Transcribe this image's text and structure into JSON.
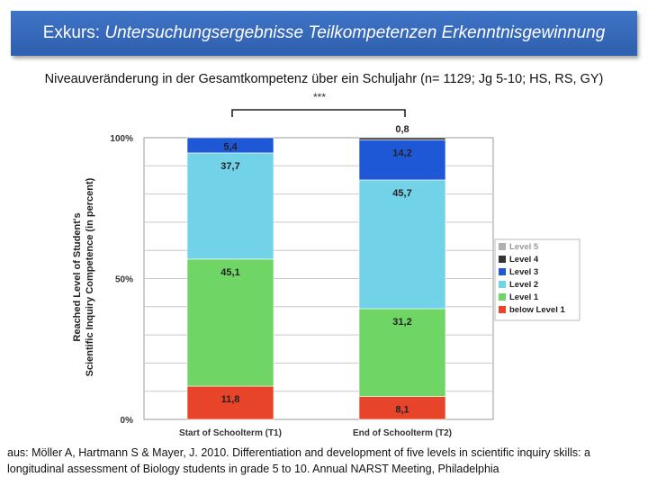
{
  "header": {
    "title_prefix": "Exkurs: ",
    "title_main": "Untersuchungsergebnisse Teilkompetenzen Erkenntnisgewinnung"
  },
  "subtitle": "Niveauveränderung in der Gesamtkompetenz über ein Schuljahr (n= 1129; Jg 5-10; HS, RS, GY)",
  "significance": "***",
  "chart_data": {
    "type": "bar",
    "stacked": true,
    "categories": [
      "Start of Schoolterm (T1)",
      "End of Schoolterm (T2)"
    ],
    "ylabel": "Reached Level of Student's Scientific Inquiry Competence (in percent)",
    "ylabel_lines": [
      "Reached Level of Student's",
      "Scientific Inquiry Competence (in percent)"
    ],
    "xlabel": "",
    "ylim": [
      0,
      100
    ],
    "yticks": [
      {
        "value": 0,
        "label": "0%"
      },
      {
        "value": 50,
        "label": "50%"
      },
      {
        "value": 100,
        "label": "100%"
      }
    ],
    "series": [
      {
        "name": "below Level 1",
        "color": "#e8442a",
        "values": [
          11.8,
          8.1
        ],
        "labels": [
          "11,8",
          "8,1"
        ]
      },
      {
        "name": "Level 1",
        "color": "#6fd665",
        "values": [
          45.1,
          31.2
        ],
        "labels": [
          "45,1",
          "31,2"
        ]
      },
      {
        "name": "Level 2",
        "color": "#72d2e8",
        "values": [
          37.7,
          45.7
        ],
        "labels": [
          "37,7",
          "45,7"
        ]
      },
      {
        "name": "Level 3",
        "color": "#1f58d6",
        "values": [
          5.4,
          14.2
        ],
        "labels": [
          "5,4",
          "14,2"
        ]
      },
      {
        "name": "Level 4",
        "color": "#333333",
        "values": [
          0,
          0.8
        ],
        "labels": [
          "",
          "0,8"
        ]
      },
      {
        "name": "Level 5",
        "color": "#b0b0b0",
        "values": [
          0,
          0
        ],
        "labels": [
          "",
          ""
        ]
      }
    ],
    "legend_order": [
      "Level 5",
      "Level 4",
      "Level 3",
      "Level 2",
      "Level 1",
      "below Level 1"
    ],
    "legend_position": "right"
  },
  "footer": "aus: Möller A, Hartmann S & Mayer, J. 2010. Differentiation and development of five levels in scientific inquiry skills: a longitudinal assessment of Biology students in grade 5 to 10. Annual NARST Meeting, Philadelphia"
}
